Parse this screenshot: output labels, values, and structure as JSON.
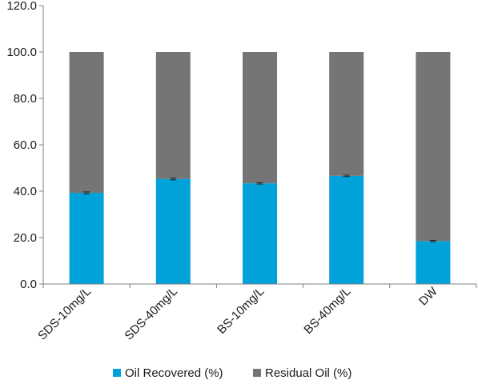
{
  "chart_data": {
    "type": "bar",
    "stacked": true,
    "categories": [
      "SDS-10mg/L",
      "SDS-40mg/L",
      "BS-10mg/L",
      "BS-40mg/L",
      "DW"
    ],
    "series": [
      {
        "name": "Oil Recovered (%)",
        "values": [
          39.3,
          45.3,
          43.4,
          46.6,
          18.5
        ],
        "color": "#00a2d9"
      },
      {
        "name": "Residual Oil (%)",
        "values": [
          60.7,
          54.7,
          56.6,
          53.4,
          81.5
        ],
        "color": "#757575"
      }
    ],
    "error_bars": [
      0.4,
      0.4,
      0.3,
      0.3,
      0.3
    ],
    "ylim": [
      0,
      120
    ],
    "yticks": [
      "0.0",
      "20.0",
      "40.0",
      "60.0",
      "80.0",
      "100.0",
      "120.0"
    ],
    "ytick_values": [
      0,
      20,
      40,
      60,
      80,
      100,
      120
    ],
    "grid": false,
    "legend_position": "bottom",
    "title": "",
    "xlabel": "",
    "ylabel": ""
  }
}
